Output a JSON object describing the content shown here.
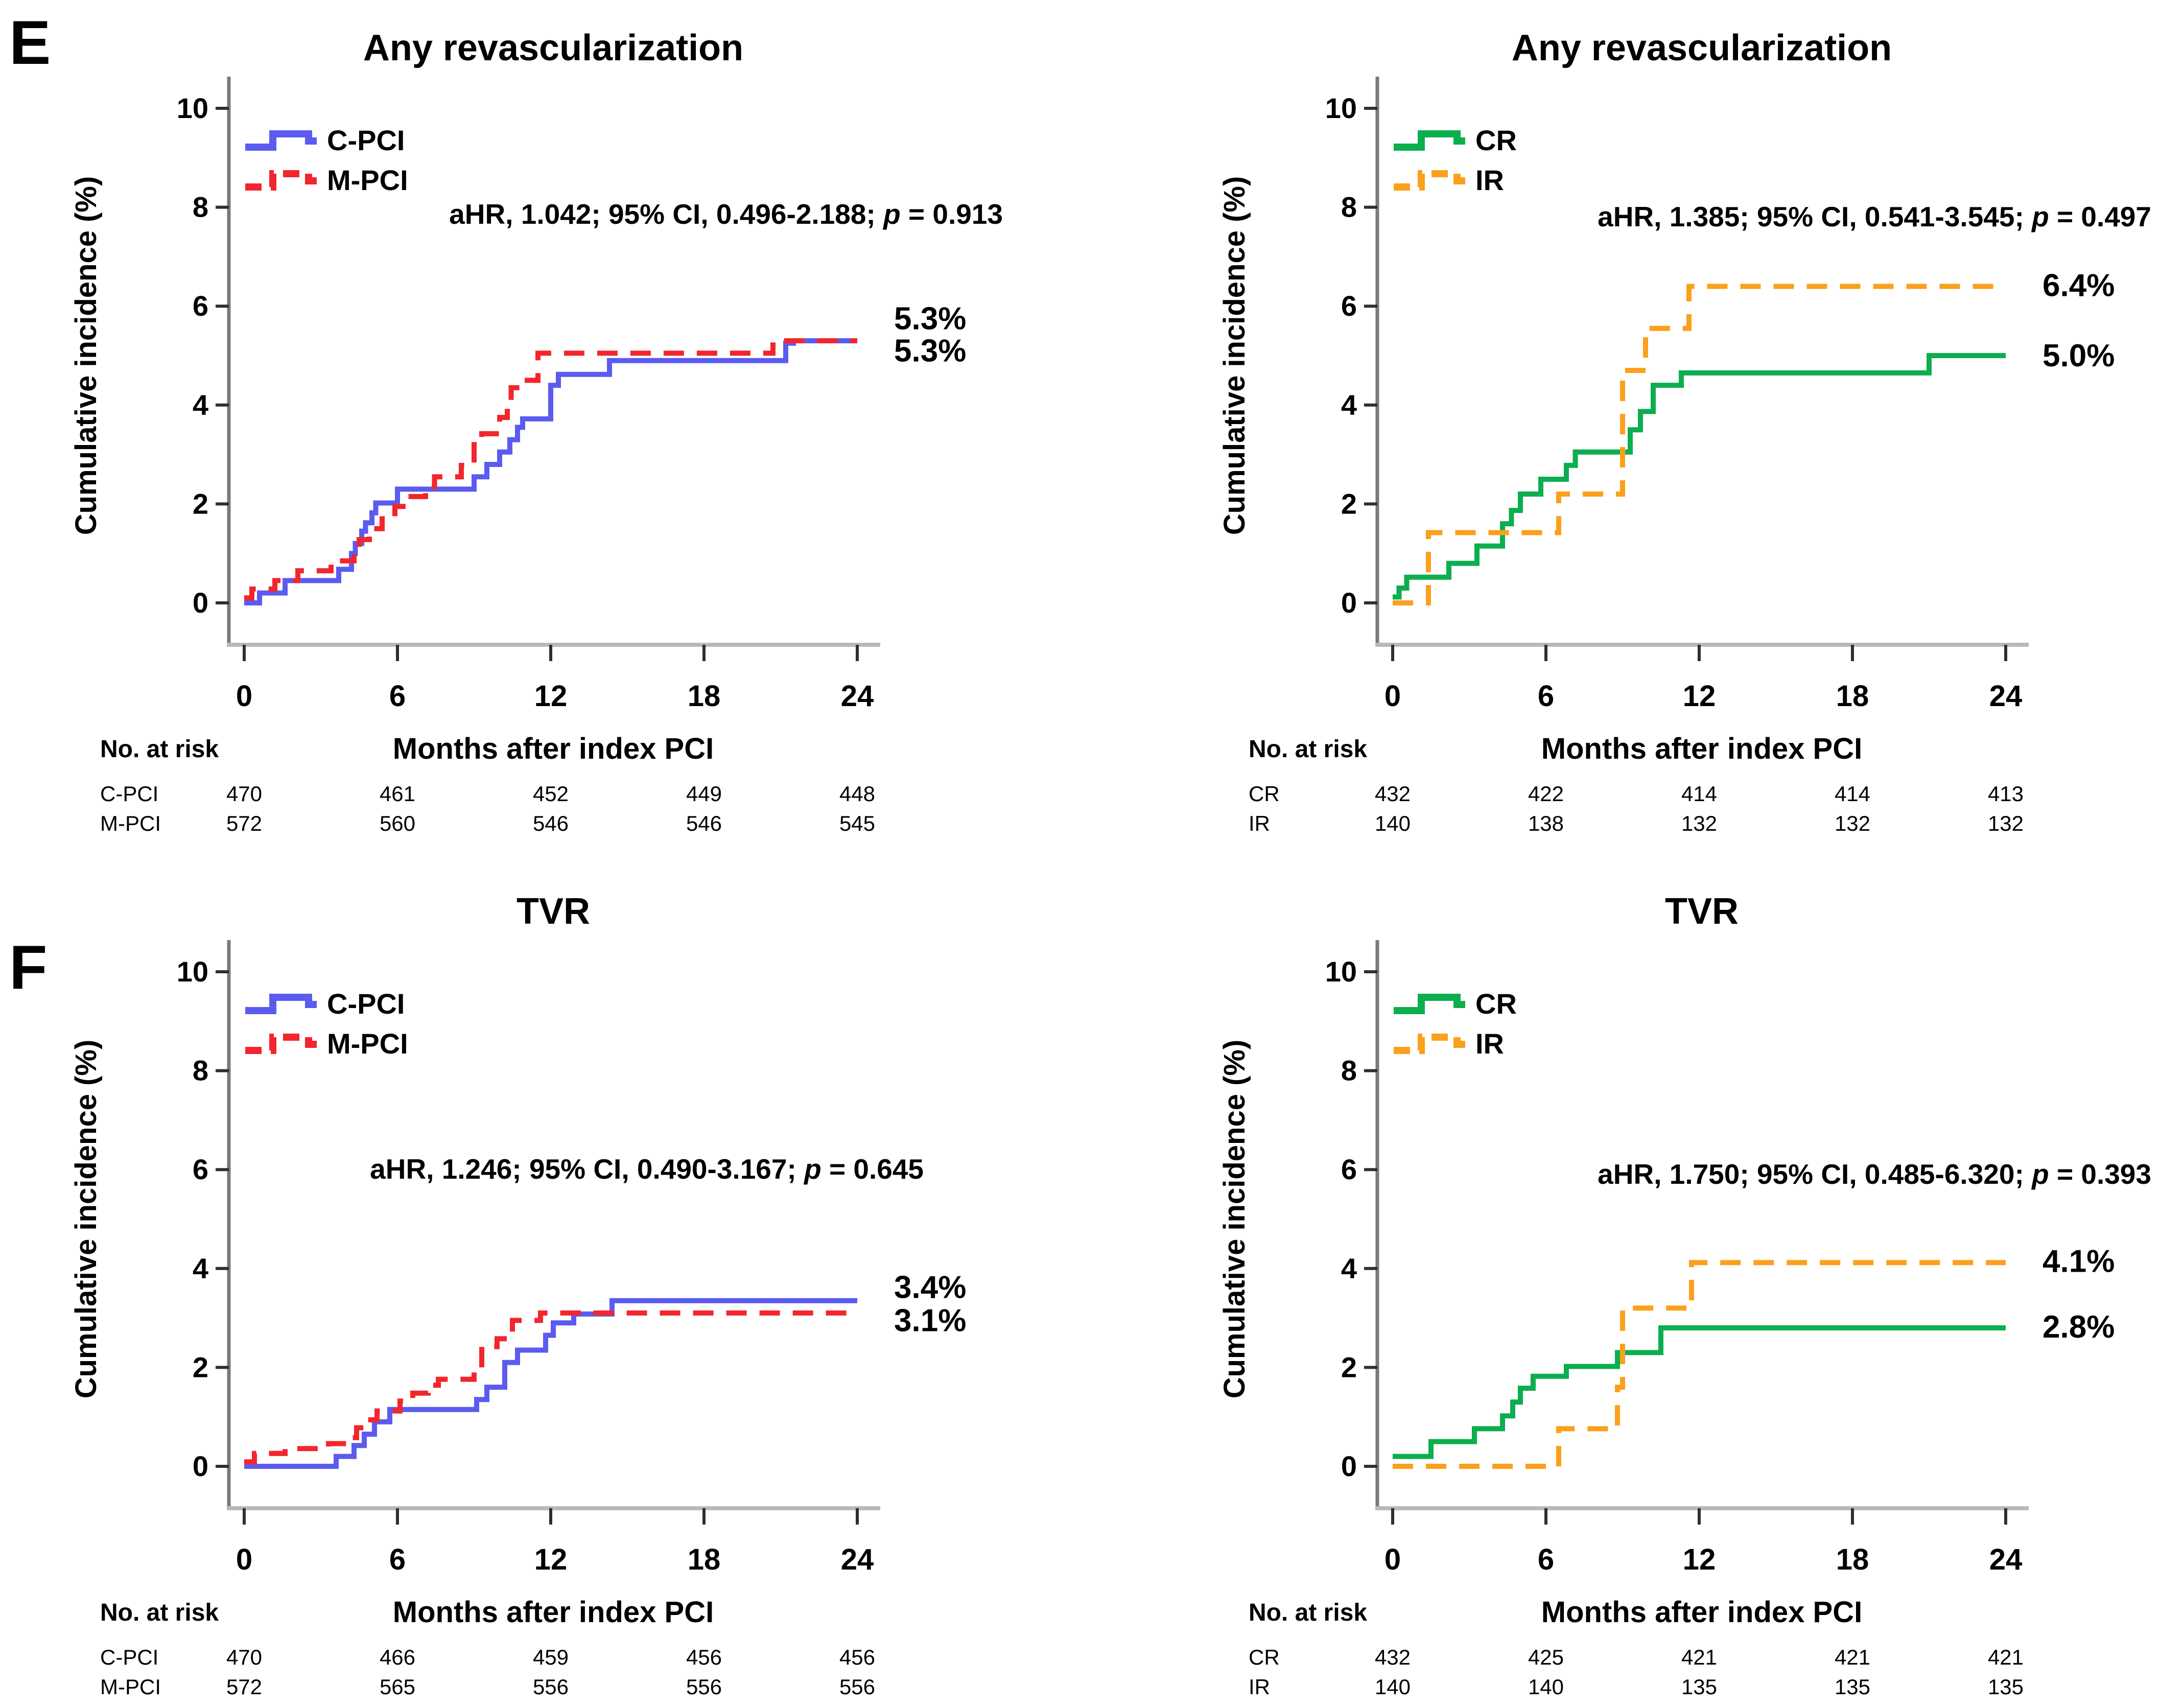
{
  "figure_labels": {
    "top": "E",
    "bottom": "F"
  },
  "chart_data": {
    "type": "line",
    "subtype": "kaplan-meier-step-cumulative-incidence",
    "x_unit": "months",
    "panels": [
      {
        "title": "Any revascularization",
        "ylabel": "Cumulative incidence (%)",
        "xlabel": "Months after index PCI",
        "risk_heading": "No. at risk",
        "ylim": [
          0,
          10
        ],
        "yticks": [
          0,
          2,
          4,
          6,
          8,
          10
        ],
        "xticks": [
          0,
          6,
          12,
          18,
          24
        ],
        "annotation": {
          "text": "aHR, 1.042; 95% CI, 0.496-2.188; ",
          "p": "p",
          "equals": " = 0.913",
          "y_pct": 7.85,
          "x_end": 1945
        },
        "series": [
          {
            "name": "C-PCI",
            "color": "#5b5bf0",
            "dashed": false,
            "end_label": "5.3%",
            "end_label_y": 5.1,
            "steps": [
              [
                0,
                0
              ],
              [
                0.6,
                0.2
              ],
              [
                1.6,
                0.45
              ],
              [
                3.7,
                0.68
              ],
              [
                4.2,
                1.0
              ],
              [
                4.35,
                1.2
              ],
              [
                4.6,
                1.45
              ],
              [
                4.75,
                1.62
              ],
              [
                5.0,
                1.82
              ],
              [
                5.15,
                2.02
              ],
              [
                6.0,
                2.3
              ],
              [
                9.0,
                2.55
              ],
              [
                9.5,
                2.8
              ],
              [
                10.0,
                3.05
              ],
              [
                10.4,
                3.3
              ],
              [
                10.7,
                3.55
              ],
              [
                10.9,
                3.72
              ],
              [
                12.0,
                4.4
              ],
              [
                12.3,
                4.62
              ],
              [
                14.3,
                4.9
              ],
              [
                21.2,
                5.25
              ],
              [
                21.5,
                5.3
              ],
              [
                24,
                5.3
              ]
            ]
          },
          {
            "name": "M-PCI",
            "color": "#f2262c",
            "dashed": true,
            "end_label": "5.3%",
            "end_label_y": 5.75,
            "steps": [
              [
                0,
                0.1
              ],
              [
                0.3,
                0.28
              ],
              [
                1.2,
                0.45
              ],
              [
                2.1,
                0.65
              ],
              [
                3.4,
                0.85
              ],
              [
                4.3,
                1.1
              ],
              [
                4.5,
                1.28
              ],
              [
                4.9,
                1.5
              ],
              [
                5.4,
                1.7
              ],
              [
                5.9,
                1.95
              ],
              [
                6.4,
                2.15
              ],
              [
                7.1,
                2.35
              ],
              [
                7.45,
                2.55
              ],
              [
                8.5,
                2.78
              ],
              [
                9.0,
                3.3
              ],
              [
                9.3,
                3.42
              ],
              [
                10.0,
                3.75
              ],
              [
                10.3,
                4.0
              ],
              [
                10.45,
                4.35
              ],
              [
                10.8,
                4.5
              ],
              [
                11.5,
                5.05
              ],
              [
                20.7,
                5.3
              ],
              [
                24,
                5.3
              ]
            ]
          }
        ],
        "risk_rows": [
          {
            "label": "C-PCI",
            "values": [
              "470",
              "461",
              "452",
              "449",
              "448"
            ]
          },
          {
            "label": "M-PCI",
            "values": [
              "572",
              "560",
              "546",
              "546",
              "545"
            ]
          }
        ]
      },
      {
        "title": "Any revascularization",
        "ylabel": "Cumulative incidence (%)",
        "xlabel": "Months after index PCI",
        "risk_heading": "No. at risk",
        "ylim": [
          0,
          10
        ],
        "yticks": [
          0,
          2,
          4,
          6,
          8,
          10
        ],
        "xticks": [
          0,
          6,
          12,
          18,
          24
        ],
        "annotation": {
          "text": "aHR, 1.385; 95% CI, 0.541-3.545; ",
          "p": "p",
          "equals": " = 0.497",
          "y_pct": 7.8,
          "x_end": 1945
        },
        "series": [
          {
            "name": "CR",
            "color": "#0cae4e",
            "dashed": false,
            "end_label": "5.0%",
            "end_label_y": 5.0,
            "steps": [
              [
                0,
                0.12
              ],
              [
                0.25,
                0.3
              ],
              [
                0.55,
                0.52
              ],
              [
                2.2,
                0.8
              ],
              [
                3.3,
                1.15
              ],
              [
                4.3,
                1.6
              ],
              [
                4.65,
                1.87
              ],
              [
                5.0,
                2.2
              ],
              [
                5.8,
                2.5
              ],
              [
                6.8,
                2.78
              ],
              [
                7.15,
                3.05
              ],
              [
                9.3,
                3.5
              ],
              [
                9.7,
                3.87
              ],
              [
                10.2,
                4.4
              ],
              [
                11.3,
                4.65
              ],
              [
                21.0,
                5.0
              ],
              [
                24,
                5.0
              ]
            ]
          },
          {
            "name": "IR",
            "color": "#fba01c",
            "dashed": true,
            "end_label": "6.4%",
            "end_label_y": 6.42,
            "steps": [
              [
                0,
                0
              ],
              [
                1.4,
                1.42
              ],
              [
                6.5,
                2.2
              ],
              [
                9.0,
                4.7
              ],
              [
                9.9,
                5.55
              ],
              [
                11.6,
                6.4
              ],
              [
                24,
                6.4
              ]
            ]
          }
        ],
        "risk_rows": [
          {
            "label": "CR",
            "values": [
              "432",
              "422",
              "414",
              "414",
              "413"
            ]
          },
          {
            "label": "IR",
            "values": [
              "140",
              "138",
              "132",
              "132",
              "132"
            ]
          }
        ]
      },
      {
        "title": "TVR",
        "ylabel": "Cumulative incidence (%)",
        "xlabel": "Months after index PCI",
        "risk_heading": "No. at risk",
        "ylim": [
          0,
          10
        ],
        "yticks": [
          0,
          2,
          4,
          6,
          8,
          10
        ],
        "xticks": [
          0,
          6,
          12,
          18,
          24
        ],
        "annotation": {
          "text": "aHR, 1.246; 95% CI, 0.490-3.167; ",
          "p": "p",
          "equals": " = 0.645",
          "y_pct": 6.0,
          "x_end": 1790
        },
        "series": [
          {
            "name": "C-PCI",
            "color": "#5b5bf0",
            "dashed": false,
            "end_label": "3.4%",
            "end_label_y": 3.62,
            "steps": [
              [
                0,
                0
              ],
              [
                3.6,
                0.2
              ],
              [
                4.3,
                0.42
              ],
              [
                4.7,
                0.65
              ],
              [
                5.1,
                0.9
              ],
              [
                5.7,
                1.15
              ],
              [
                9.1,
                1.35
              ],
              [
                9.5,
                1.6
              ],
              [
                10.2,
                2.1
              ],
              [
                10.7,
                2.35
              ],
              [
                11.8,
                2.65
              ],
              [
                12.1,
                2.9
              ],
              [
                12.9,
                3.08
              ],
              [
                14.4,
                3.35
              ],
              [
                24,
                3.35
              ]
            ]
          },
          {
            "name": "M-PCI",
            "color": "#f2262c",
            "dashed": true,
            "end_label": "3.1%",
            "end_label_y": 2.95,
            "steps": [
              [
                0,
                0.09
              ],
              [
                0.4,
                0.26
              ],
              [
                1.6,
                0.36
              ],
              [
                3.3,
                0.46
              ],
              [
                4.0,
                0.58
              ],
              [
                4.4,
                0.78
              ],
              [
                4.8,
                0.94
              ],
              [
                5.2,
                1.12
              ],
              [
                6.1,
                1.32
              ],
              [
                6.6,
                1.48
              ],
              [
                7.2,
                1.64
              ],
              [
                7.6,
                1.76
              ],
              [
                9.0,
                1.98
              ],
              [
                9.3,
                2.42
              ],
              [
                9.9,
                2.58
              ],
              [
                10.5,
                2.95
              ],
              [
                11.6,
                3.1
              ],
              [
                24,
                3.1
              ]
            ]
          }
        ],
        "risk_rows": [
          {
            "label": "C-PCI",
            "values": [
              "470",
              "466",
              "459",
              "456",
              "456"
            ]
          },
          {
            "label": "M-PCI",
            "values": [
              "572",
              "565",
              "556",
              "556",
              "556"
            ]
          }
        ]
      },
      {
        "title": "TVR",
        "ylabel": "Cumulative incidence (%)",
        "xlabel": "Months after index PCI",
        "risk_heading": "No. at risk",
        "ylim": [
          0,
          10
        ],
        "yticks": [
          0,
          2,
          4,
          6,
          8,
          10
        ],
        "xticks": [
          0,
          6,
          12,
          18,
          24
        ],
        "annotation": {
          "text": "aHR, 1.750; 95% CI, 0.485-6.320; ",
          "p": "p",
          "equals": " = 0.393",
          "y_pct": 5.9,
          "x_end": 1945
        },
        "series": [
          {
            "name": "CR",
            "color": "#0cae4e",
            "dashed": false,
            "end_label": "2.8%",
            "end_label_y": 2.82,
            "steps": [
              [
                0,
                0.2
              ],
              [
                1.5,
                0.5
              ],
              [
                3.2,
                0.76
              ],
              [
                4.3,
                1.02
              ],
              [
                4.7,
                1.3
              ],
              [
                5.0,
                1.58
              ],
              [
                5.5,
                1.82
              ],
              [
                6.8,
                2.02
              ],
              [
                8.8,
                2.3
              ],
              [
                10.5,
                2.8
              ],
              [
                24,
                2.8
              ]
            ]
          },
          {
            "name": "IR",
            "color": "#fba01c",
            "dashed": true,
            "end_label": "4.1%",
            "end_label_y": 4.15,
            "steps": [
              [
                0,
                0
              ],
              [
                6.5,
                0.76
              ],
              [
                8.8,
                1.6
              ],
              [
                9.0,
                3.2
              ],
              [
                11.7,
                4.12
              ],
              [
                24,
                4.12
              ]
            ]
          }
        ],
        "risk_rows": [
          {
            "label": "CR",
            "values": [
              "432",
              "425",
              "421",
              "421",
              "421"
            ]
          },
          {
            "label": "IR",
            "values": [
              "140",
              "140",
              "135",
              "135",
              "135"
            ]
          }
        ]
      }
    ]
  },
  "style_colors": {
    "y_axis": "#7a7a7a",
    "x_axis": "#b9b9b9",
    "tick": "#2f2f2f",
    "text": "#000000"
  }
}
